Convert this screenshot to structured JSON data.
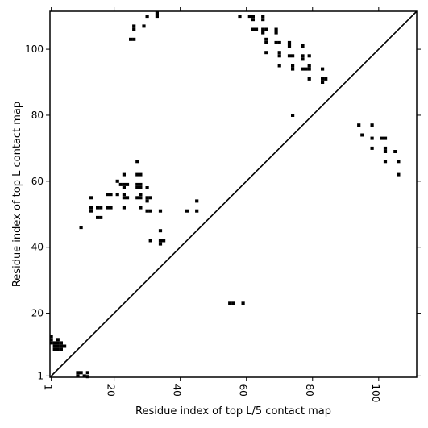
{
  "chart_data": {
    "type": "scatter",
    "xlabel": "Residue index of top L/5 contact map",
    "ylabel": "Residue index of top L contact map",
    "xlim": [
      0.6,
      111.5
    ],
    "ylim": [
      0.6,
      111.5
    ],
    "xticks": [
      1,
      20,
      40,
      60,
      80,
      100
    ],
    "yticks": [
      1,
      20,
      40,
      60,
      80,
      100
    ],
    "diagonal": true,
    "marker_color": "#000000",
    "series": [
      {
        "points": [
          [
            1,
            13
          ],
          [
            1,
            12
          ],
          [
            1,
            11
          ],
          [
            2,
            11
          ],
          [
            2,
            10
          ],
          [
            2,
            9
          ],
          [
            3,
            12
          ],
          [
            3,
            11
          ],
          [
            3,
            10
          ],
          [
            3,
            9
          ],
          [
            4,
            11
          ],
          [
            4,
            10
          ],
          [
            4,
            9
          ],
          [
            5,
            10
          ],
          [
            9,
            2
          ],
          [
            9,
            1
          ],
          [
            10,
            2
          ],
          [
            11,
            1
          ],
          [
            12,
            2
          ],
          [
            12,
            0.8
          ],
          [
            10,
            46
          ],
          [
            13,
            55
          ],
          [
            13,
            52
          ],
          [
            13,
            51
          ],
          [
            15,
            52
          ],
          [
            15,
            49
          ],
          [
            16,
            52
          ],
          [
            16,
            49
          ],
          [
            18,
            56
          ],
          [
            18,
            52
          ],
          [
            19,
            56
          ],
          [
            19,
            52
          ],
          [
            21,
            60
          ],
          [
            21,
            56
          ],
          [
            22,
            59
          ],
          [
            23,
            62
          ],
          [
            23,
            59
          ],
          [
            23,
            58
          ],
          [
            23,
            56
          ],
          [
            23,
            55
          ],
          [
            23,
            52
          ],
          [
            24,
            59
          ],
          [
            24,
            55
          ],
          [
            25,
            103
          ],
          [
            26,
            103
          ],
          [
            26,
            107
          ],
          [
            26,
            106
          ],
          [
            27,
            66
          ],
          [
            27,
            62
          ],
          [
            27,
            59
          ],
          [
            27,
            58
          ],
          [
            27,
            55
          ],
          [
            28,
            62
          ],
          [
            28,
            59
          ],
          [
            28,
            58
          ],
          [
            28,
            56
          ],
          [
            28,
            55
          ],
          [
            28,
            52
          ],
          [
            29,
            107
          ],
          [
            30,
            110
          ],
          [
            30,
            58
          ],
          [
            30,
            55
          ],
          [
            30,
            54
          ],
          [
            30,
            51
          ],
          [
            31,
            55
          ],
          [
            31,
            51
          ],
          [
            31,
            42
          ],
          [
            33,
            111
          ],
          [
            33,
            110
          ],
          [
            34,
            51
          ],
          [
            34,
            45
          ],
          [
            34,
            42
          ],
          [
            34,
            41
          ],
          [
            35,
            42
          ],
          [
            42,
            51
          ],
          [
            45,
            54
          ],
          [
            45,
            51
          ],
          [
            55,
            23
          ],
          [
            56,
            23
          ],
          [
            59,
            23
          ],
          [
            58,
            110
          ],
          [
            61,
            110
          ],
          [
            62,
            110
          ],
          [
            62,
            109
          ],
          [
            62,
            106
          ],
          [
            63,
            106
          ],
          [
            65,
            110
          ],
          [
            65,
            109
          ],
          [
            65,
            106
          ],
          [
            65,
            105
          ],
          [
            66,
            106
          ],
          [
            66,
            103
          ],
          [
            66,
            102
          ],
          [
            66,
            99
          ],
          [
            69,
            106
          ],
          [
            69,
            105
          ],
          [
            69,
            102
          ],
          [
            70,
            102
          ],
          [
            70,
            99
          ],
          [
            70,
            98
          ],
          [
            70,
            95
          ],
          [
            73,
            102
          ],
          [
            73,
            101
          ],
          [
            73,
            98
          ],
          [
            74,
            98
          ],
          [
            74,
            95
          ],
          [
            74,
            94
          ],
          [
            74,
            80
          ],
          [
            77,
            101
          ],
          [
            77,
            98
          ],
          [
            77,
            97
          ],
          [
            77,
            94
          ],
          [
            78,
            94
          ],
          [
            79,
            98
          ],
          [
            79,
            95
          ],
          [
            79,
            94
          ],
          [
            79,
            91
          ],
          [
            83,
            94
          ],
          [
            83,
            91
          ],
          [
            83,
            90
          ],
          [
            84,
            91
          ],
          [
            94,
            77
          ],
          [
            95,
            74
          ],
          [
            98,
            77
          ],
          [
            98,
            73
          ],
          [
            98,
            70
          ],
          [
            101,
            73
          ],
          [
            102,
            73
          ],
          [
            102,
            70
          ],
          [
            102,
            69
          ],
          [
            102,
            66
          ],
          [
            105,
            69
          ],
          [
            106,
            66
          ],
          [
            106,
            62
          ]
        ]
      }
    ]
  }
}
